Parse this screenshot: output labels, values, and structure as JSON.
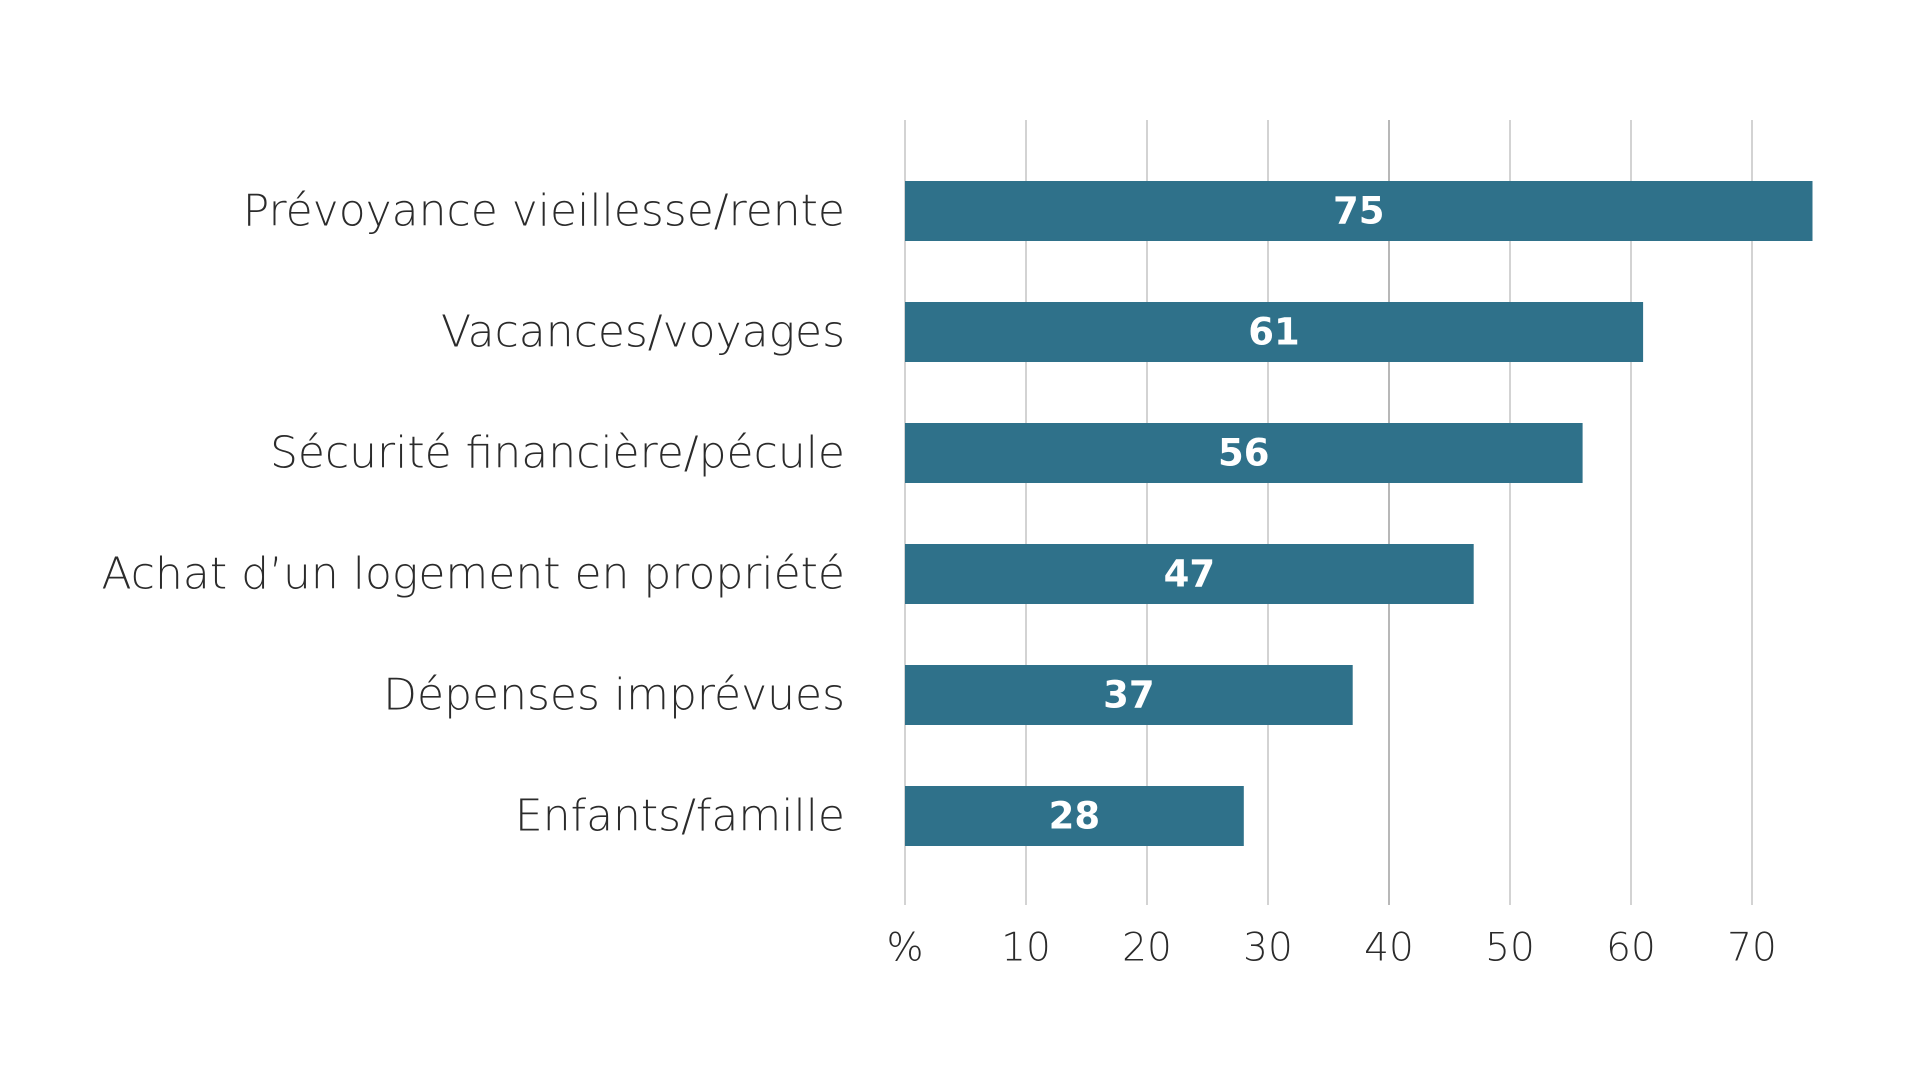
{
  "chart_data": {
    "type": "bar",
    "orientation": "horizontal",
    "categories": [
      "Prévoyance vieillesse/rente",
      "Vacances/voyages",
      "Sécurité financière/pécule",
      "Achat d’un logement en propriété",
      "Dépenses imprévues",
      "Enfants/famille"
    ],
    "values": [
      75,
      61,
      56,
      47,
      37,
      28
    ],
    "data_labels": [
      "75",
      "61",
      "56",
      "47",
      "37",
      "28"
    ],
    "xlim": [
      0,
      75
    ],
    "x_ticks": [
      {
        "value": 0,
        "label": "%"
      },
      {
        "value": 10,
        "label": "10"
      },
      {
        "value": 20,
        "label": "20"
      },
      {
        "value": 30,
        "label": "30"
      },
      {
        "value": 40,
        "label": "40"
      },
      {
        "value": 50,
        "label": "50"
      },
      {
        "value": 60,
        "label": "60"
      },
      {
        "value": 70,
        "label": "70"
      }
    ],
    "grid": "vertical",
    "legend": "none",
    "bar_color": "#2f718a",
    "title": "",
    "xlabel": "",
    "ylabel": ""
  }
}
